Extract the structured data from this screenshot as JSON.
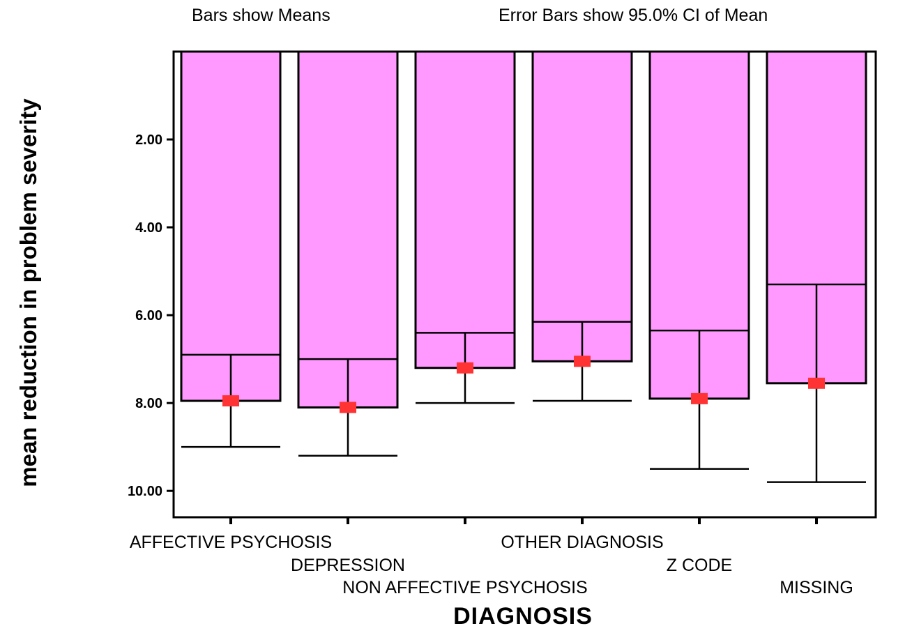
{
  "notes": {
    "left": "Bars show Means",
    "right": "Error Bars show 95.0% CI of Mean"
  },
  "chart_data": {
    "type": "bar",
    "subtype": "bar with 95% CI error bars",
    "xlabel": "DIAGNOSIS",
    "ylabel": "mean reduction in problem severity",
    "y_axis_inverted": true,
    "ylim": [
      0,
      10.6
    ],
    "yticks": [
      2.0,
      4.0,
      6.0,
      8.0,
      10.0
    ],
    "ytick_labels": [
      "2.00",
      "4.00",
      "6.00",
      "8.00",
      "10.00"
    ],
    "categories": [
      "AFFECTIVE PSYCHOSIS",
      "DEPRESSION",
      "NON AFFECTIVE PSYCHOSIS",
      "OTHER DIAGNOSIS",
      "Z CODE",
      "MISSING"
    ],
    "values": [
      7.95,
      8.1,
      7.2,
      7.05,
      7.9,
      7.55
    ],
    "ci_lower": [
      6.9,
      7.0,
      6.4,
      6.15,
      6.35,
      5.3
    ],
    "ci_upper": [
      9.0,
      9.2,
      8.0,
      7.95,
      9.5,
      9.8
    ],
    "bar_color": "#ff99ff",
    "marker_color": "#ff3333",
    "grid": false,
    "legend": "none"
  }
}
